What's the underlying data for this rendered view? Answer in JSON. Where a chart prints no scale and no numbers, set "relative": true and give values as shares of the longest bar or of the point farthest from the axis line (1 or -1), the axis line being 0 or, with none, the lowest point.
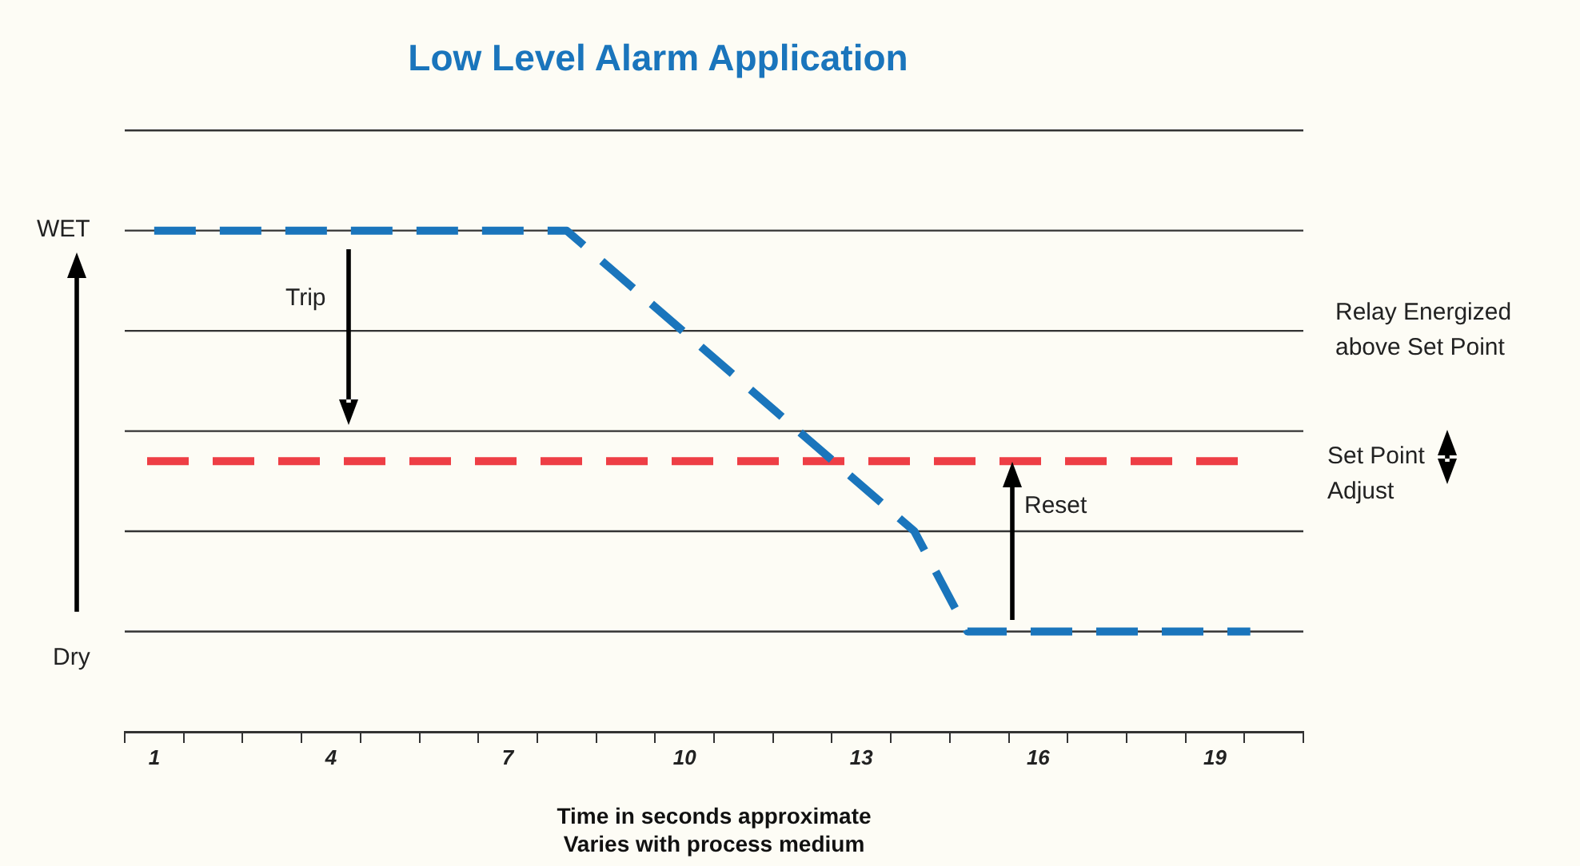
{
  "chart_data": {
    "type": "line",
    "title": "Low Level Alarm Application",
    "xlabel": "Time in seconds approximate\nVaries with process medium",
    "x": [
      1,
      8,
      13.9,
      14.8,
      19.6
    ],
    "series": [
      {
        "color": "#1a75bc",
        "values": [
          1,
          1,
          0.4,
          0.2,
          0.2
        ],
        "line_style": "dashed"
      }
    ],
    "relative": true,
    "xlim": [
      0.5,
      20.5
    ],
    "xticks": [
      {
        "value": 0.5,
        "label": null
      },
      1,
      {
        "value": 1.5,
        "label": null
      },
      {
        "value": 2.5,
        "label": null
      },
      {
        "value": 3.5,
        "label": null
      },
      4,
      {
        "value": 4.5,
        "label": null
      },
      {
        "value": 5.5,
        "label": null
      },
      {
        "value": 6.5,
        "label": null
      },
      7,
      {
        "value": 7.5,
        "label": null
      },
      {
        "value": 8.5,
        "label": null
      },
      {
        "value": 9.5,
        "label": null
      },
      10,
      {
        "value": 10.5,
        "label": null
      },
      {
        "value": 11.5,
        "label": null
      },
      {
        "value": 12.5,
        "label": null
      },
      13,
      {
        "value": 13.5,
        "label": null
      },
      {
        "value": 14.5,
        "label": null
      },
      {
        "value": 15.5,
        "label": null
      },
      16,
      {
        "value": 16.5,
        "label": null
      },
      {
        "value": 17.5,
        "label": null
      },
      {
        "value": 18.5,
        "label": null
      },
      19,
      {
        "value": 19.5,
        "label": null
      },
      {
        "value": 20.5,
        "label": null
      }
    ],
    "marker": "none",
    "ref_lines": [
      {
        "axis": "y",
        "value": 0.54,
        "color": "#ee3e45",
        "line_style": "dashed"
      },
      {
        "axis": "y",
        "value": 0.2,
        "color": "#333333",
        "line_style": "solid"
      },
      {
        "axis": "y",
        "value": 0.4,
        "color": "#333333",
        "line_style": "solid"
      },
      {
        "axis": "y",
        "value": 0.6,
        "color": "#333333",
        "line_style": "solid"
      },
      {
        "axis": "y",
        "value": 0.8,
        "color": "#333333",
        "line_style": "solid"
      },
      {
        "axis": "y",
        "value": 1,
        "color": "#333333",
        "line_style": "solid"
      },
      {
        "axis": "y",
        "value": 1.2,
        "color": "#333333",
        "line_style": "solid"
      }
    ],
    "annotations": [
      "WET",
      "Dry",
      "Trip",
      "Reset",
      "Relay Energized\nabove Set Point",
      "Set Point\nAdjust"
    ]
  }
}
